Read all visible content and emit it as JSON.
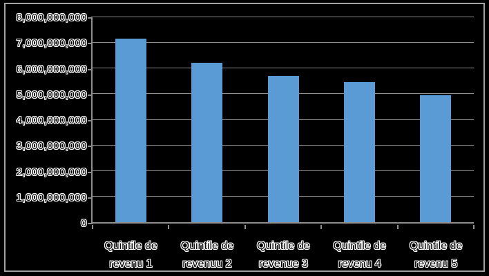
{
  "chart_data": {
    "type": "bar",
    "title": "",
    "xlabel": "",
    "ylabel": "",
    "categories": [
      "Quintile de revenu 1",
      "Quintile de revenuu 2",
      "Quintile de revenue 3",
      "Quintile de revenu 4",
      "Quintile de revenu 5"
    ],
    "categories_lines": [
      [
        "Quintile de",
        "revenu 1"
      ],
      [
        "Quintile de",
        "revenuu 2"
      ],
      [
        "Quintile de",
        "revenue 3"
      ],
      [
        "Quintile de",
        "revenu 4"
      ],
      [
        "Quintile de",
        "revenu 5"
      ]
    ],
    "values": [
      7150000000,
      6200000000,
      5700000000,
      5450000000,
      4950000000
    ],
    "ylim": [
      0,
      8000000000
    ],
    "ytick_step": 1000000000,
    "ytick_labels": [
      "0",
      "1,000,000,000",
      "2,000,000,000",
      "3,000,000,000",
      "4,000,000,000",
      "5,000,000,000",
      "6,000,000,000",
      "7,000,000,000",
      "8,000,000,000"
    ],
    "grid": true,
    "legend": false,
    "colors": {
      "bar": "#5b9bd5",
      "gridline": "#8f8f8f",
      "axis": "#8f8f8f",
      "frame_border": "#a3a3a3",
      "background": "#000000",
      "text": "#ffffff"
    }
  }
}
